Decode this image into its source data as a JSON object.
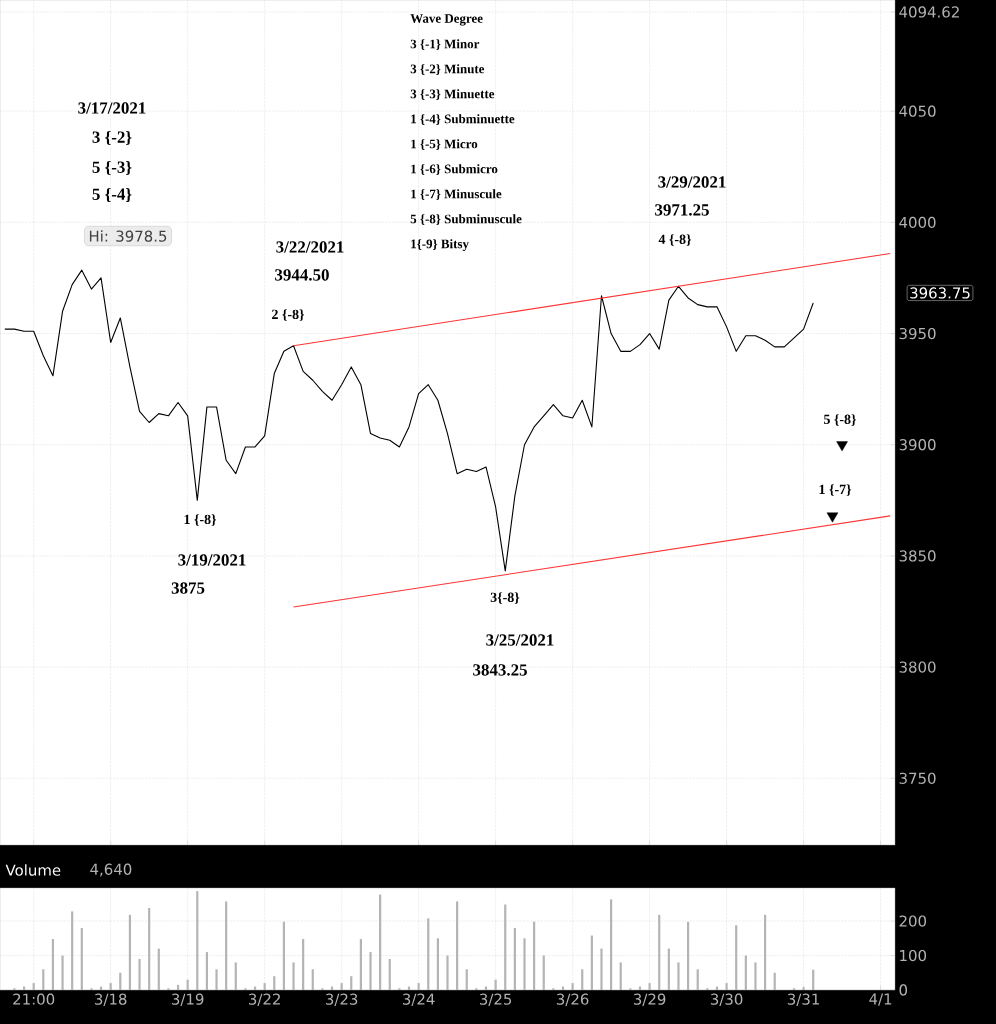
{
  "chart_data": [
    {
      "type": "line",
      "categories": [
        null,
        null,
        null,
        null,
        null,
        null,
        null,
        null,
        null,
        null,
        null,
        null,
        null,
        null,
        null,
        null,
        null,
        null,
        null,
        null,
        null,
        null,
        null,
        null,
        null,
        null,
        null,
        null,
        null,
        null,
        null,
        null,
        null,
        null,
        null,
        null,
        null,
        null,
        null,
        null,
        null,
        null,
        null,
        null,
        null,
        null,
        null,
        null,
        null,
        null,
        null,
        null,
        null,
        null,
        null,
        null,
        null,
        null,
        null,
        null,
        null,
        null,
        null,
        null,
        null,
        null,
        null,
        null,
        null,
        null,
        null,
        null,
        null,
        null,
        null,
        null,
        null,
        null,
        null,
        null,
        null,
        null,
        null,
        null,
        null,
        null,
        null,
        null,
        null,
        null,
        null,
        null,
        null
      ],
      "ylim": [
        3720,
        4100
      ],
      "yticks": [
        3750,
        3800,
        3850,
        3900,
        3950,
        4000,
        4050,
        {
          "value": 4094.62,
          "label": "4094.62"
        }
      ],
      "tick_labels": "y",
      "grid": true,
      "series": [
        {
          "color": "#000000",
          "values": [
            3952,
            3952,
            3951,
            3951,
            3940,
            3931,
            3960,
            3972,
            3978.5,
            3970,
            3975,
            3946,
            3957,
            3935,
            3915,
            3910,
            3914,
            3913,
            3919,
            3913,
            3875,
            3917,
            3917,
            3893,
            3887,
            3899,
            3899,
            3904,
            3932,
            3942,
            3944.5,
            3933,
            3929,
            3924,
            3920,
            3927,
            3935,
            3927,
            3905,
            3903,
            3902,
            3899,
            3908,
            3923,
            3927,
            3920,
            3905,
            3887,
            3889,
            3888,
            3890,
            3872,
            3843.25,
            3877,
            3900,
            3908,
            3913,
            3918,
            3913,
            3912,
            3920,
            3908,
            3967,
            3950,
            3942,
            3942,
            3945,
            3950,
            3943,
            3965,
            3971.25,
            3966,
            3963,
            3962,
            3962,
            3953,
            3942,
            3949,
            3949,
            3947,
            3944,
            3944,
            3948,
            3952,
            3963.75,
            null,
            null,
            null,
            null,
            null,
            null,
            null,
            null
          ]
        },
        {
          "type": "line",
          "color": "#ff3333",
          "values": [
            null,
            null,
            null,
            null,
            null,
            null,
            null,
            null,
            null,
            null,
            null,
            null,
            null,
            null,
            null,
            null,
            null,
            null,
            null,
            null,
            null,
            null,
            null,
            null,
            null,
            null,
            null,
            null,
            null,
            null,
            3944.5,
            null,
            null,
            null,
            null,
            null,
            null,
            null,
            null,
            null,
            null,
            null,
            null,
            null,
            null,
            null,
            null,
            null,
            null,
            null,
            null,
            null,
            null,
            null,
            null,
            null,
            null,
            null,
            null,
            null,
            null,
            null,
            null,
            null,
            null,
            null,
            null,
            null,
            null,
            null,
            null,
            null,
            null,
            null,
            null,
            null,
            null,
            null,
            null,
            null,
            null,
            null,
            null,
            null,
            null,
            null,
            null,
            null,
            null,
            null,
            null,
            null,
            3986
          ]
        },
        {
          "type": "line",
          "color": "#ff3333",
          "values": [
            null,
            null,
            null,
            null,
            null,
            null,
            null,
            null,
            null,
            null,
            null,
            null,
            null,
            null,
            null,
            null,
            null,
            null,
            null,
            null,
            null,
            null,
            null,
            null,
            null,
            null,
            null,
            null,
            null,
            null,
            3827,
            null,
            null,
            null,
            null,
            null,
            null,
            null,
            null,
            null,
            null,
            null,
            null,
            null,
            null,
            null,
            null,
            null,
            null,
            null,
            null,
            null,
            null,
            null,
            null,
            null,
            null,
            null,
            null,
            null,
            null,
            null,
            null,
            null,
            null,
            null,
            null,
            null,
            null,
            null,
            null,
            null,
            null,
            null,
            null,
            null,
            null,
            null,
            null,
            null,
            null,
            null,
            null,
            null,
            null,
            null,
            null,
            null,
            null,
            null,
            null,
            null,
            3868
          ]
        },
        {
          "type": "scatter",
          "marker": "triangle",
          "color": "#000000",
          "values": [
            null,
            null,
            null,
            null,
            null,
            null,
            null,
            null,
            null,
            null,
            null,
            null,
            null,
            null,
            null,
            null,
            null,
            null,
            null,
            null,
            null,
            null,
            null,
            null,
            null,
            null,
            null,
            null,
            null,
            null,
            null,
            null,
            null,
            null,
            null,
            null,
            null,
            null,
            null,
            null,
            null,
            null,
            null,
            null,
            null,
            null,
            null,
            null,
            null,
            null,
            null,
            null,
            null,
            null,
            null,
            null,
            null,
            null,
            null,
            null,
            null,
            null,
            null,
            null,
            null,
            null,
            null,
            null,
            null,
            null,
            null,
            null,
            null,
            null,
            null,
            null,
            null,
            null,
            null,
            null,
            null,
            null,
            null,
            null,
            null,
            null,
            3868,
            3900,
            null,
            null,
            null,
            null,
            null
          ]
        }
      ],
      "annotations": [
        "Wave Degree",
        "3 {-1} Minor",
        "3 {-2} Minute",
        "3 {-3} Minuette",
        "1 {-4} Subminuette",
        "1 {-5} Micro",
        "1 {-6} Submicro",
        "1 {-7} Minuscule",
        "5 {-8} Subminuscule",
        "1{-9} Bitsy",
        "3/17/2021",
        "3 {-2}",
        "5 {-3}",
        "5 {-4}",
        "Hi: 3978.5",
        "3/22/2021",
        "3944.50",
        "2 {-8}",
        "1 {-8}",
        "3/19/2021",
        "3875",
        "3{-8}",
        "3/25/2021",
        "3843.25",
        "3/29/2021",
        "3971.25",
        "4 {-8}",
        "5 {-8}",
        "1 {-7}",
        "3963.75"
      ]
    },
    {
      "type": "bar",
      "title": "Volume",
      "annotations": [
        "4,640"
      ],
      "categories": [
        null,
        null,
        null,
        "21:00",
        null,
        null,
        null,
        null,
        null,
        null,
        null,
        "3/18",
        null,
        null,
        null,
        null,
        null,
        null,
        null,
        "3/19",
        null,
        null,
        null,
        null,
        null,
        null,
        null,
        "3/22",
        null,
        null,
        null,
        null,
        null,
        null,
        null,
        "3/23",
        null,
        null,
        null,
        null,
        null,
        null,
        null,
        "3/24",
        null,
        null,
        null,
        null,
        null,
        null,
        null,
        "3/25",
        null,
        null,
        null,
        null,
        null,
        null,
        null,
        "3/26",
        null,
        null,
        null,
        null,
        null,
        null,
        null,
        "3/29",
        null,
        null,
        null,
        null,
        null,
        null,
        null,
        "3/30",
        null,
        null,
        null,
        null,
        null,
        null,
        null,
        "3/31",
        null,
        null,
        null,
        null,
        null,
        null,
        null,
        "4/1",
        null
      ],
      "ylim": [
        0,
        296
      ],
      "yticks": [
        0,
        100,
        200
      ],
      "grid": true,
      "series": [
        {
          "color": "#b4b4b4",
          "values": [
            null,
            5,
            10,
            20,
            60,
            148,
            100,
            228,
            180,
            5,
            10,
            20,
            50,
            218,
            90,
            238,
            120,
            5,
            15,
            30,
            287,
            110,
            60,
            257,
            80,
            5,
            10,
            20,
            40,
            198,
            80,
            148,
            60,
            5,
            10,
            20,
            40,
            148,
            110,
            277,
            90,
            5,
            10,
            20,
            208,
            150,
            100,
            257,
            60,
            5,
            10,
            30,
            248,
            180,
            150,
            198,
            100,
            5,
            10,
            20,
            60,
            158,
            120,
            263,
            80,
            5,
            10,
            20,
            218,
            120,
            80,
            198,
            60,
            5,
            10,
            20,
            188,
            100,
            80,
            218,
            50,
            null,
            5,
            8,
            59,
            null,
            null,
            null,
            null,
            null,
            null,
            null,
            null
          ]
        }
      ]
    }
  ]
}
